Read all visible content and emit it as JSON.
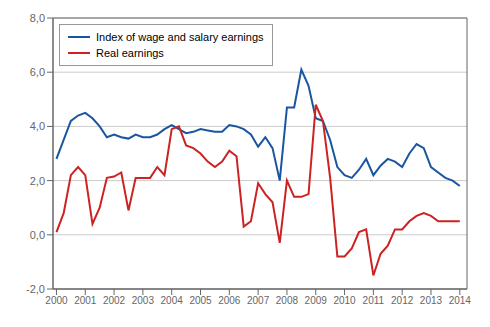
{
  "chart_data": {
    "type": "line",
    "x": [
      2000.0,
      2000.25,
      2000.5,
      2000.75,
      2001.0,
      2001.25,
      2001.5,
      2001.75,
      2002.0,
      2002.25,
      2002.5,
      2002.75,
      2003.0,
      2003.25,
      2003.5,
      2003.75,
      2004.0,
      2004.25,
      2004.5,
      2004.75,
      2005.0,
      2005.25,
      2005.5,
      2005.75,
      2006.0,
      2006.25,
      2006.5,
      2006.75,
      2007.0,
      2007.25,
      2007.5,
      2007.75,
      2008.0,
      2008.25,
      2008.5,
      2008.75,
      2009.0,
      2009.25,
      2009.5,
      2009.75,
      2010.0,
      2010.25,
      2010.5,
      2010.75,
      2011.0,
      2011.25,
      2011.5,
      2011.75,
      2012.0,
      2012.25,
      2012.5,
      2012.75,
      2013.0,
      2013.25,
      2013.5,
      2013.75,
      2014.0
    ],
    "series": [
      {
        "name": "Index of wage and salary earnings",
        "color": "#1a56a0",
        "values": [
          2.8,
          3.5,
          4.2,
          4.4,
          4.5,
          4.3,
          4.0,
          3.6,
          3.7,
          3.6,
          3.55,
          3.7,
          3.6,
          3.6,
          3.7,
          3.9,
          4.05,
          3.9,
          3.75,
          3.8,
          3.9,
          3.85,
          3.8,
          3.8,
          4.05,
          4.0,
          3.9,
          3.7,
          3.25,
          3.6,
          3.2,
          2.0,
          4.7,
          4.7,
          6.1,
          5.5,
          4.3,
          4.2,
          3.5,
          2.5,
          2.2,
          2.1,
          2.4,
          2.8,
          2.2,
          2.55,
          2.8,
          2.7,
          2.5,
          3.0,
          3.35,
          3.2,
          2.5,
          2.3,
          2.1,
          2.0,
          1.8
        ]
      },
      {
        "name": "Real earnings",
        "color": "#cc2222",
        "values": [
          0.1,
          0.8,
          2.2,
          2.5,
          2.2,
          0.4,
          1.0,
          2.1,
          2.15,
          2.3,
          0.9,
          2.1,
          2.1,
          2.1,
          2.5,
          2.2,
          3.9,
          4.0,
          3.3,
          3.2,
          3.0,
          2.7,
          2.5,
          2.7,
          3.1,
          2.9,
          0.3,
          0.5,
          1.9,
          1.5,
          1.2,
          -0.3,
          2.0,
          1.4,
          1.4,
          1.5,
          4.8,
          4.2,
          2.1,
          -0.8,
          -0.8,
          -0.5,
          0.1,
          0.2,
          -1.5,
          -0.7,
          -0.4,
          0.2,
          0.2,
          0.5,
          0.7,
          0.8,
          0.7,
          0.5,
          0.5,
          0.5,
          0.5
        ]
      }
    ],
    "xlim": [
      1999.88,
      2014.25
    ],
    "xticks": [
      2000,
      2001,
      2002,
      2003,
      2004,
      2005,
      2006,
      2007,
      2008,
      2009,
      2010,
      2011,
      2012,
      2013,
      2014
    ],
    "ylim": [
      -2.0,
      8.0
    ],
    "yticks": [
      {
        "value": -2.0,
        "label": "-2,0"
      },
      {
        "value": 0.0,
        "label": "0,0"
      },
      {
        "value": 2.0,
        "label": "2,0"
      },
      {
        "value": 4.0,
        "label": "4,0"
      },
      {
        "value": 6.0,
        "label": "6,0"
      },
      {
        "value": 8.0,
        "label": "8,0"
      }
    ],
    "grid": "y",
    "legend": "upper left"
  }
}
